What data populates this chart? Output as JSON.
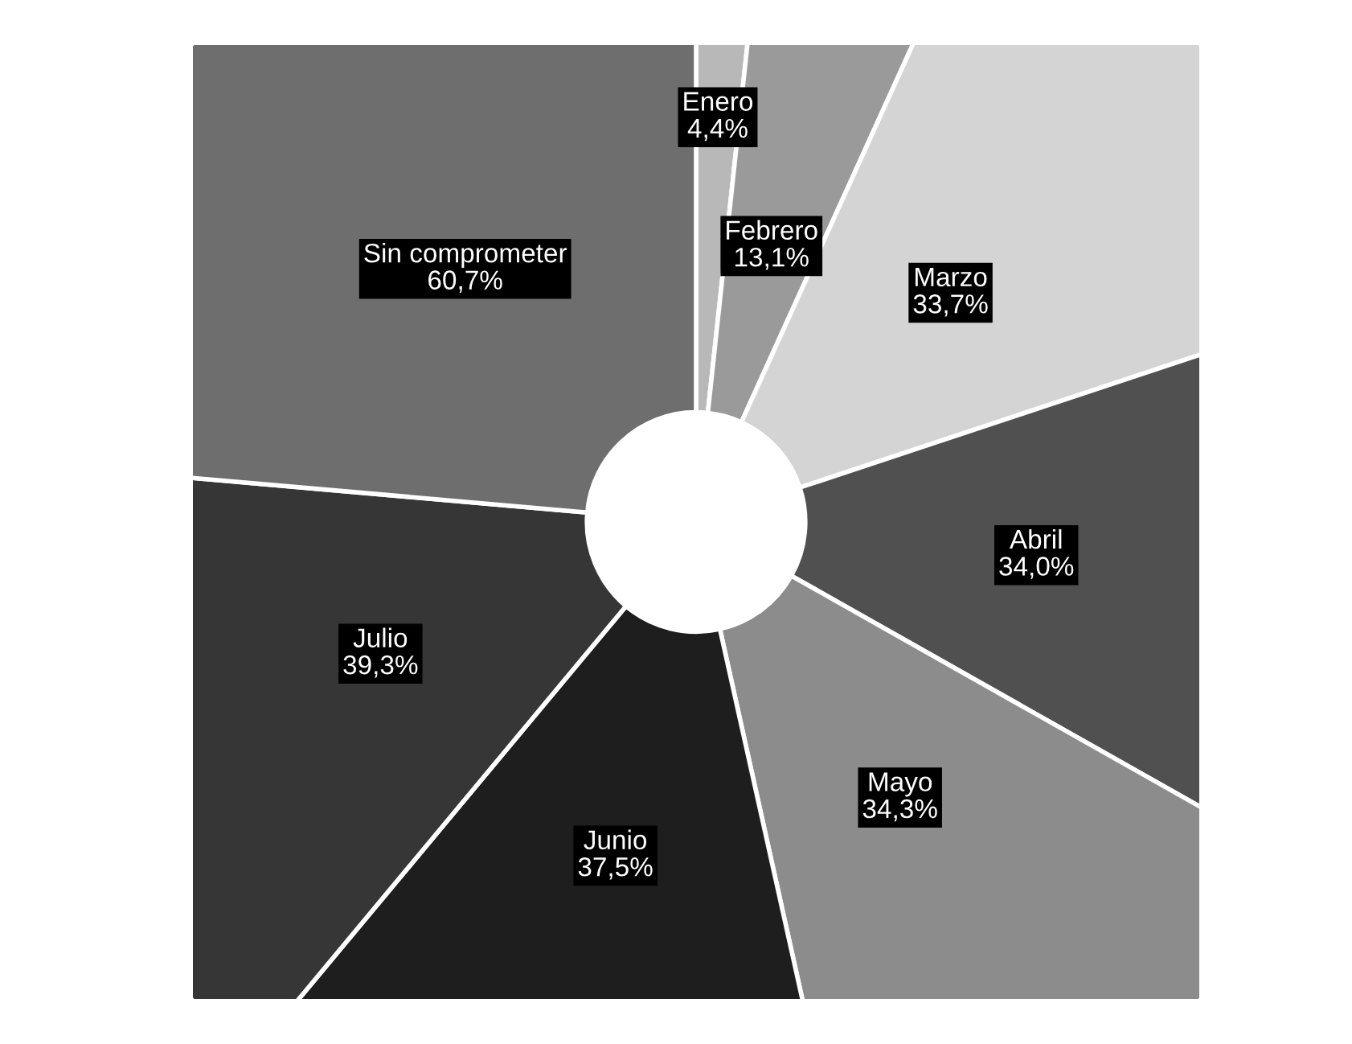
{
  "chart_data": {
    "type": "donut",
    "categories": [
      "Enero",
      "Febrero",
      "Marzo",
      "Abril",
      "Mayo",
      "Junio",
      "Julio",
      "Sin comprometer"
    ],
    "values": [
      4.4,
      13.1,
      33.7,
      34.0,
      34.3,
      37.5,
      39.3,
      60.7
    ],
    "value_labels": [
      "4,4%",
      "13,1%",
      "33,7%",
      "34,0%",
      "34,3%",
      "37,5%",
      "39,3%",
      "60,7%"
    ],
    "colors": [
      "#b8b8b8",
      "#9a9a9a",
      "#d4d4d4",
      "#505050",
      "#8c8c8c",
      "#1e1e1e",
      "#363636",
      "#6e6e6e"
    ],
    "legend": false
  }
}
